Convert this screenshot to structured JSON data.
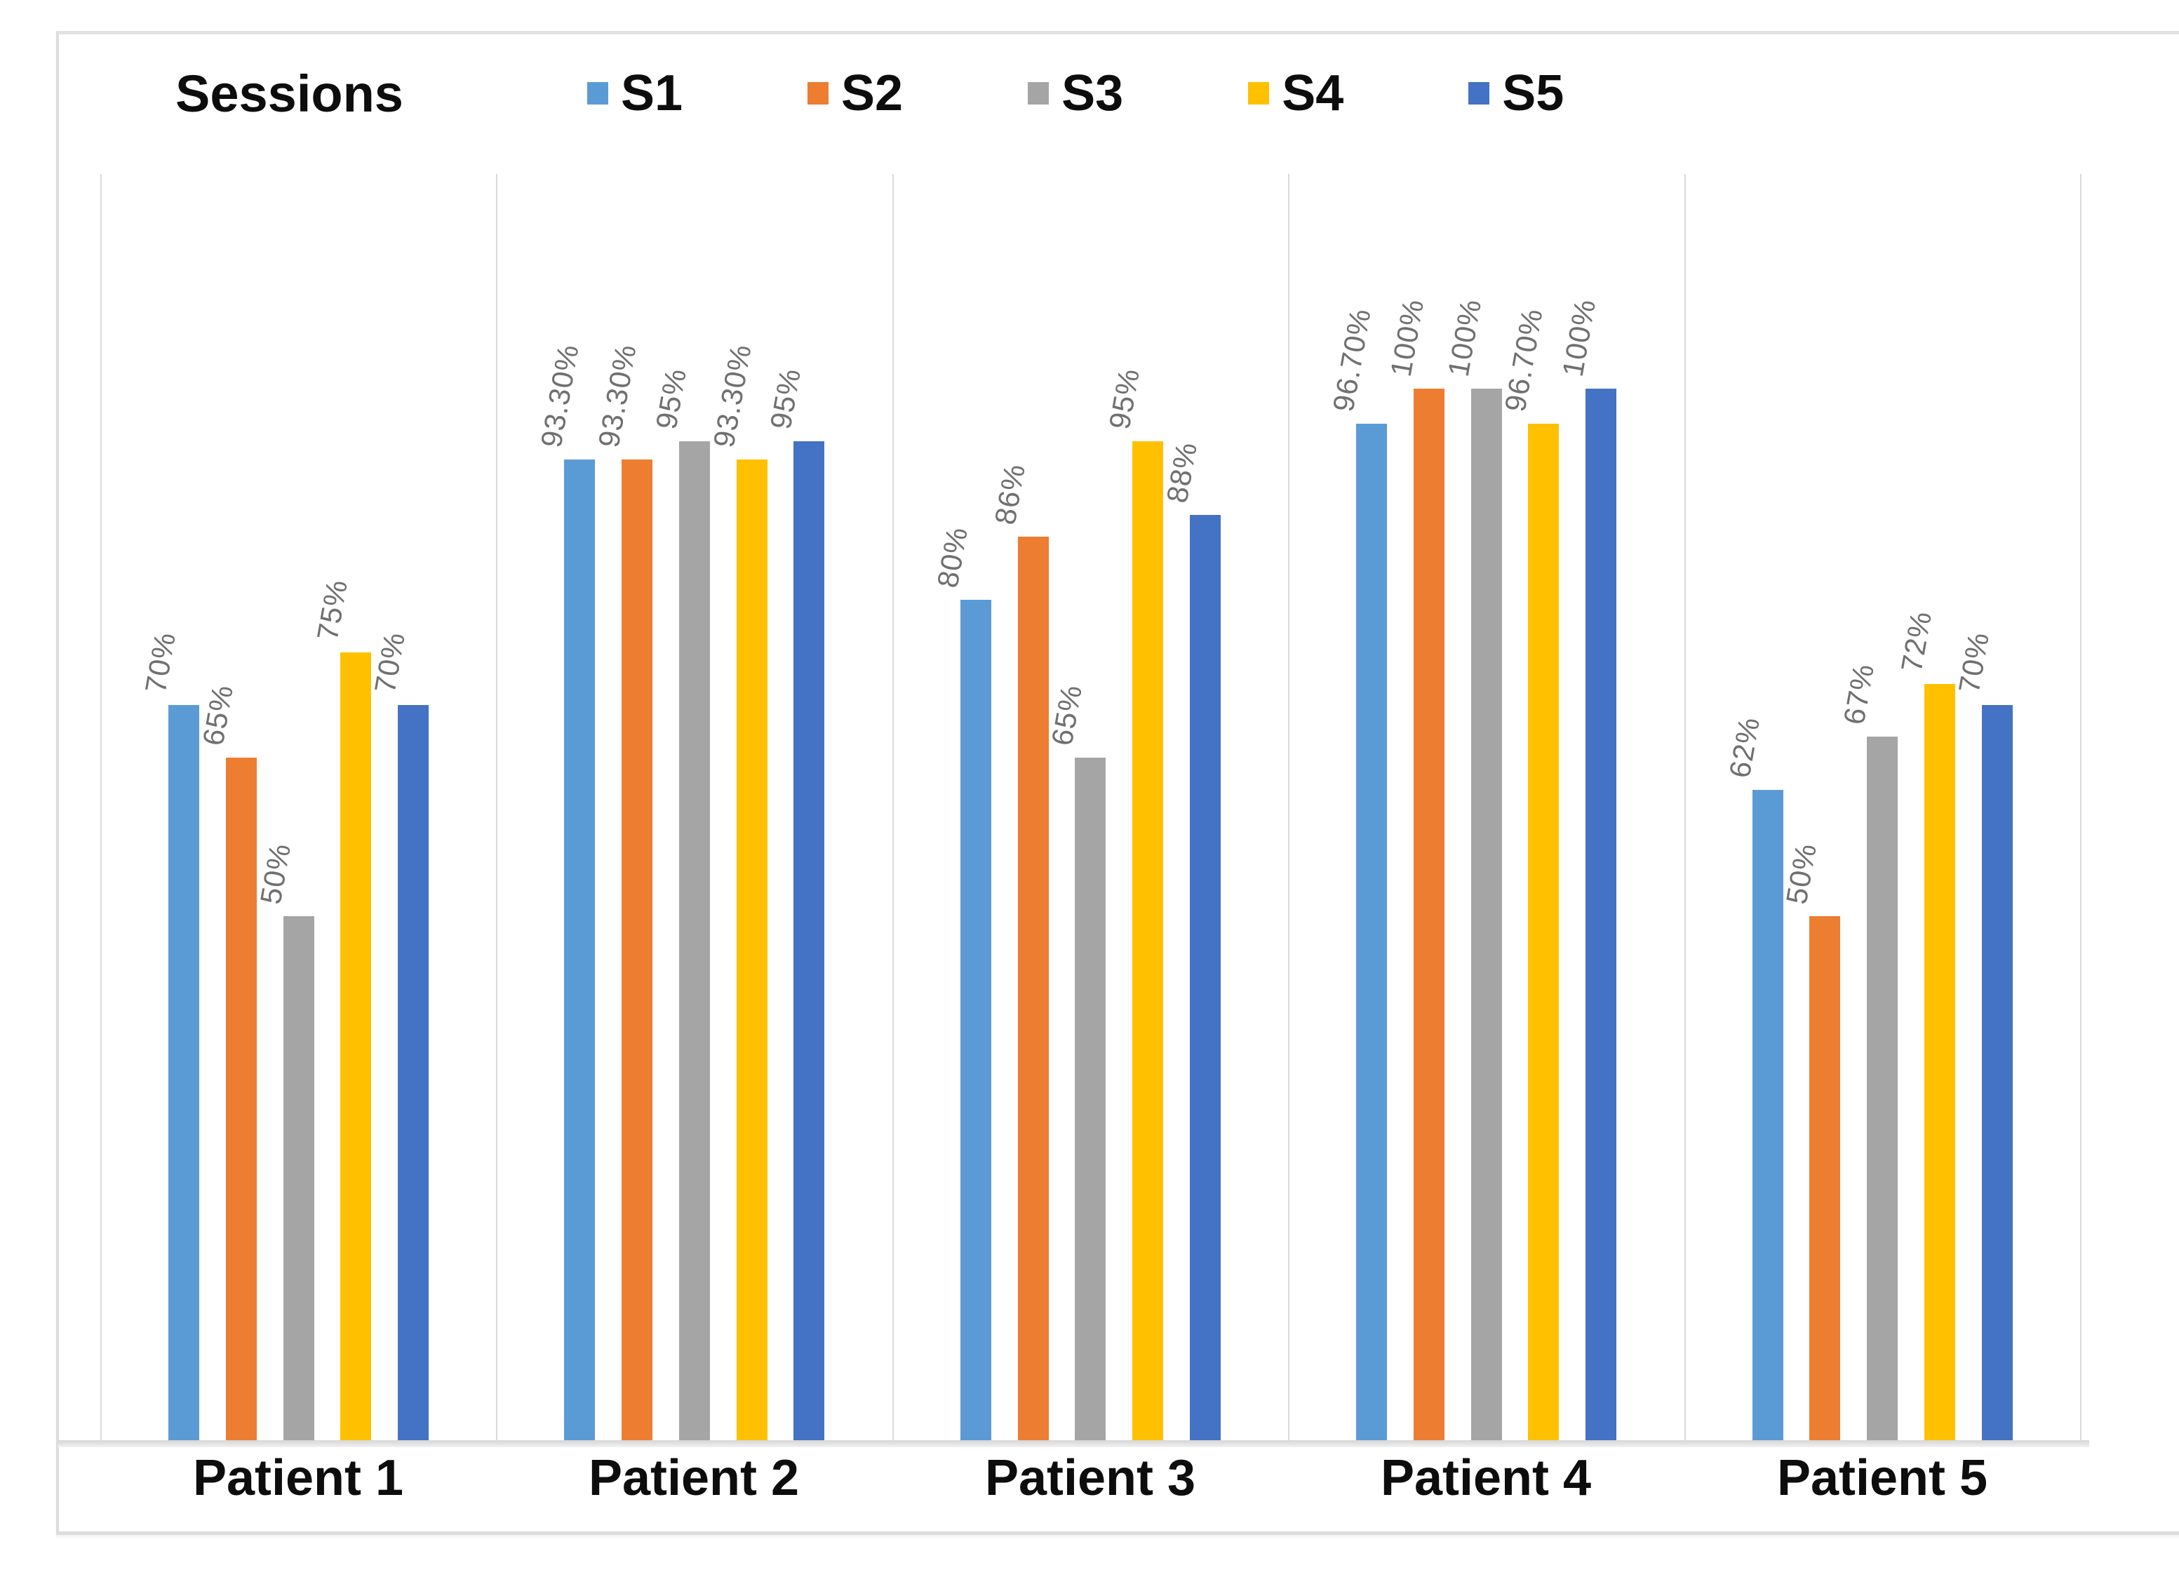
{
  "chart_data": {
    "type": "bar",
    "title": "Sessions",
    "categories": [
      "Patient 1",
      "Patient 2",
      "Patient 3",
      "Patient 4",
      "Patient 5"
    ],
    "series": [
      {
        "name": "S1",
        "color": "#5B9BD5",
        "values": [
          70,
          93.3,
          80,
          96.7,
          62
        ],
        "labels": [
          "70%",
          "93.30%",
          "80%",
          "96.70%",
          "62%"
        ]
      },
      {
        "name": "S2",
        "color": "#ED7D31",
        "values": [
          65,
          93.3,
          86,
          100,
          50
        ],
        "labels": [
          "65%",
          "93.30%",
          "86%",
          "100%",
          "50%"
        ]
      },
      {
        "name": "S3",
        "color": "#A5A5A5",
        "values": [
          50,
          95,
          65,
          100,
          67
        ],
        "labels": [
          "50%",
          "95%",
          "65%",
          "100%",
          "67%"
        ]
      },
      {
        "name": "S4",
        "color": "#FFC000",
        "values": [
          75,
          93.3,
          95,
          96.7,
          72
        ],
        "labels": [
          "75%",
          "93.30%",
          "95%",
          "96.70%",
          "72%"
        ]
      },
      {
        "name": "S5",
        "color": "#4472C4",
        "values": [
          70,
          95,
          88,
          100,
          70
        ],
        "labels": [
          "70%",
          "95%",
          "88%",
          "100%",
          "70%"
        ]
      }
    ],
    "xlabel": "",
    "ylabel": "",
    "ylim": [
      0,
      120
    ],
    "grid": false,
    "legend_position": "top-left",
    "data_label_color": "#707070",
    "separator_color": "#D9D9D9",
    "category_label_color": "#0d0d0d"
  }
}
